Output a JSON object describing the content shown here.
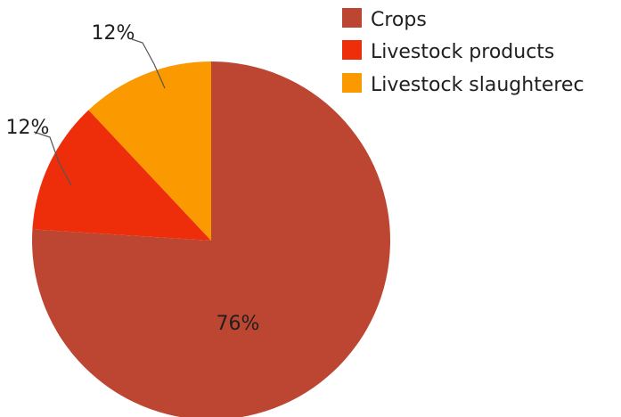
{
  "chart_data": {
    "type": "pie",
    "categories": [
      "Crops",
      "Livestock products",
      "Livestock slaughtered"
    ],
    "values": [
      76,
      12,
      12
    ],
    "value_labels": [
      "76%",
      "12%",
      "12%"
    ],
    "colors": [
      "#bd4632",
      "#ee2e0b",
      "#fa9a00"
    ],
    "start_angle": "12 o'clock, clockwise",
    "legend": {
      "position": "top-right",
      "entries": [
        "Crops",
        "Livestock products",
        "Livestock slaughterec"
      ]
    }
  }
}
